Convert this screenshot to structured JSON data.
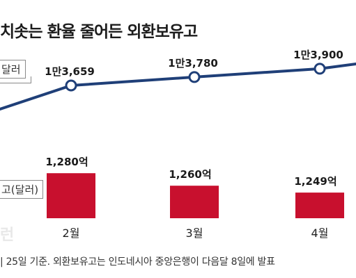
{
  "title": "치솟는 환율 줄어든 외환보유고",
  "legend_rate": "달러",
  "legend_reserves": "고(달러)",
  "watermark": "런",
  "footnote": "| 25일 기준. 외환보유고는 인도네시아 중앙은행이 다음달 8일에 발표",
  "colors": {
    "line": "#1f3f78",
    "bar": "#c8102e"
  },
  "chart_data": [
    {
      "type": "line",
      "categories": [
        "2월",
        "3월",
        "4월"
      ],
      "values": [
        13659,
        13780,
        13900
      ],
      "labels": [
        "1만3,659",
        "1만3,780",
        "1만3,900"
      ]
    },
    {
      "type": "bar",
      "categories": [
        "2월",
        "3월",
        "4월"
      ],
      "values": [
        1280,
        1260,
        1249
      ],
      "labels": [
        "1,280억",
        "1,260억",
        "1,249억"
      ]
    }
  ]
}
